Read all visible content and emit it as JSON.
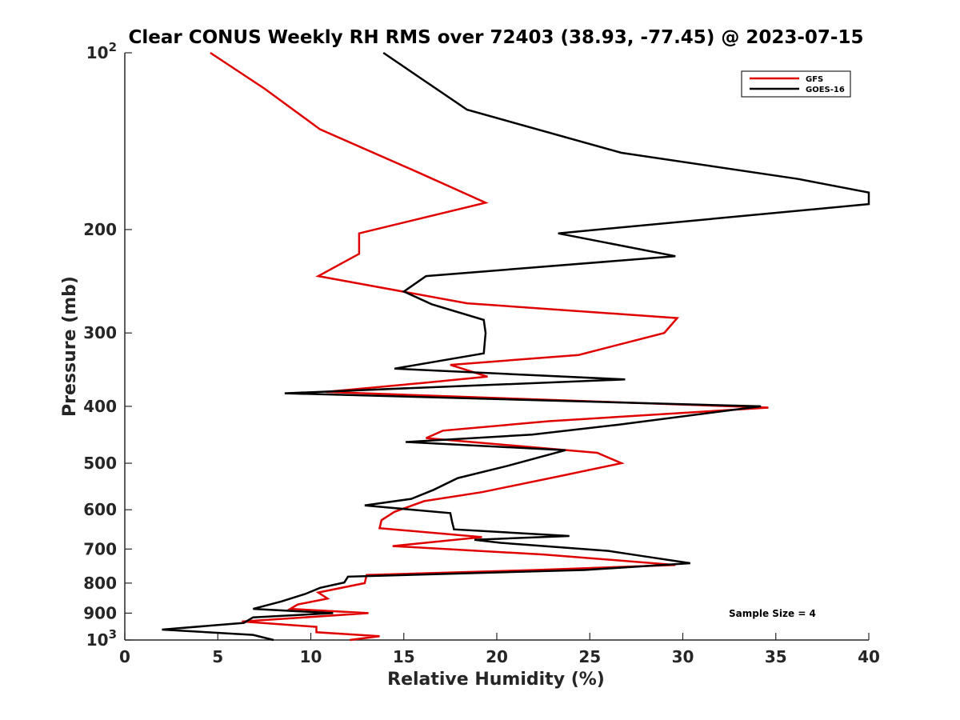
{
  "chart_data": {
    "type": "line",
    "title": "Clear CONUS Weekly RH RMS over 72403 (38.93, -77.45) @ 2023-07-15",
    "xlabel": "Relative Humidity (%)",
    "ylabel": "Pressure (mb)",
    "xlim": [
      0,
      40
    ],
    "ylim": [
      100,
      1000
    ],
    "y_scale": "log",
    "y_reversed": true,
    "grid": false,
    "legend_position": "top-right",
    "x_ticks": [
      "0",
      "5",
      "10",
      "15",
      "20",
      "25",
      "30",
      "35",
      "40"
    ],
    "y_ticks": [
      {
        "value": 100,
        "base": "10",
        "exp": "2"
      },
      {
        "value": 200,
        "label": "200"
      },
      {
        "value": 300,
        "label": "300"
      },
      {
        "value": 400,
        "label": "400"
      },
      {
        "value": 500,
        "label": "500"
      },
      {
        "value": 600,
        "label": "600"
      },
      {
        "value": 700,
        "label": "700"
      },
      {
        "value": 800,
        "label": "800"
      },
      {
        "value": 900,
        "label": "900"
      },
      {
        "value": 1000,
        "base": "10",
        "exp": "3"
      }
    ],
    "annotation": "Sample Size = 4",
    "series": [
      {
        "name": "GFS",
        "color": "#e00000",
        "points": [
          [
            4.6,
            100
          ],
          [
            7.5,
            115
          ],
          [
            10.5,
            135
          ],
          [
            15.8,
            160
          ],
          [
            19.4,
            180
          ],
          [
            12.6,
            203
          ],
          [
            12.6,
            220
          ],
          [
            10.4,
            240
          ],
          [
            18.4,
            267
          ],
          [
            29.7,
            283
          ],
          [
            29.0,
            300
          ],
          [
            24.4,
            327
          ],
          [
            17.5,
            340
          ],
          [
            19.5,
            356
          ],
          [
            16.0,
            365
          ],
          [
            10.8,
            378
          ],
          [
            34.6,
            402
          ],
          [
            22.8,
            424
          ],
          [
            17.1,
            440
          ],
          [
            16.2,
            453
          ],
          [
            25.4,
            480
          ],
          [
            26.7,
            500
          ],
          [
            23.5,
            525
          ],
          [
            19.2,
            560
          ],
          [
            16.1,
            580
          ],
          [
            14.5,
            605
          ],
          [
            13.8,
            625
          ],
          [
            13.7,
            645
          ],
          [
            19.2,
            668
          ],
          [
            14.4,
            692
          ],
          [
            22.5,
            715
          ],
          [
            29.6,
            745
          ],
          [
            22.1,
            760
          ],
          [
            13.0,
            775
          ],
          [
            12.9,
            800
          ],
          [
            10.4,
            830
          ],
          [
            10.9,
            850
          ],
          [
            9.3,
            870
          ],
          [
            8.9,
            885
          ],
          [
            13.1,
            900
          ],
          [
            6.3,
            930
          ],
          [
            10.3,
            950
          ],
          [
            10.3,
            970
          ],
          [
            13.7,
            985
          ],
          [
            12.1,
            1000
          ]
        ]
      },
      {
        "name": "GOES-16",
        "color": "#000000",
        "points": [
          [
            13.9,
            100
          ],
          [
            18.4,
            125
          ],
          [
            26.7,
            148
          ],
          [
            36.2,
            164
          ],
          [
            40.0,
            173
          ],
          [
            40.0,
            181
          ],
          [
            23.3,
            203
          ],
          [
            29.6,
            222
          ],
          [
            16.2,
            240
          ],
          [
            15.0,
            255
          ],
          [
            16.5,
            268
          ],
          [
            19.3,
            285
          ],
          [
            19.4,
            300
          ],
          [
            19.3,
            325
          ],
          [
            14.5,
            345
          ],
          [
            26.9,
            360
          ],
          [
            17.5,
            370
          ],
          [
            8.6,
            380
          ],
          [
            34.2,
            400
          ],
          [
            26.5,
            430
          ],
          [
            21.9,
            447
          ],
          [
            15.1,
            460
          ],
          [
            23.7,
            475
          ],
          [
            20.6,
            505
          ],
          [
            17.9,
            530
          ],
          [
            16.6,
            555
          ],
          [
            15.4,
            575
          ],
          [
            12.9,
            590
          ],
          [
            17.5,
            608
          ],
          [
            17.6,
            630
          ],
          [
            17.7,
            648
          ],
          [
            23.9,
            665
          ],
          [
            18.8,
            675
          ],
          [
            20.2,
            683
          ],
          [
            26.0,
            705
          ],
          [
            27.9,
            720
          ],
          [
            30.4,
            740
          ],
          [
            24.7,
            760
          ],
          [
            12.0,
            780
          ],
          [
            11.8,
            798
          ],
          [
            10.5,
            815
          ],
          [
            9.7,
            835
          ],
          [
            8.4,
            860
          ],
          [
            6.9,
            885
          ],
          [
            11.2,
            900
          ],
          [
            6.9,
            915
          ],
          [
            6.4,
            935
          ],
          [
            2.0,
            960
          ],
          [
            6.9,
            980
          ],
          [
            8.0,
            1000
          ]
        ]
      }
    ]
  }
}
